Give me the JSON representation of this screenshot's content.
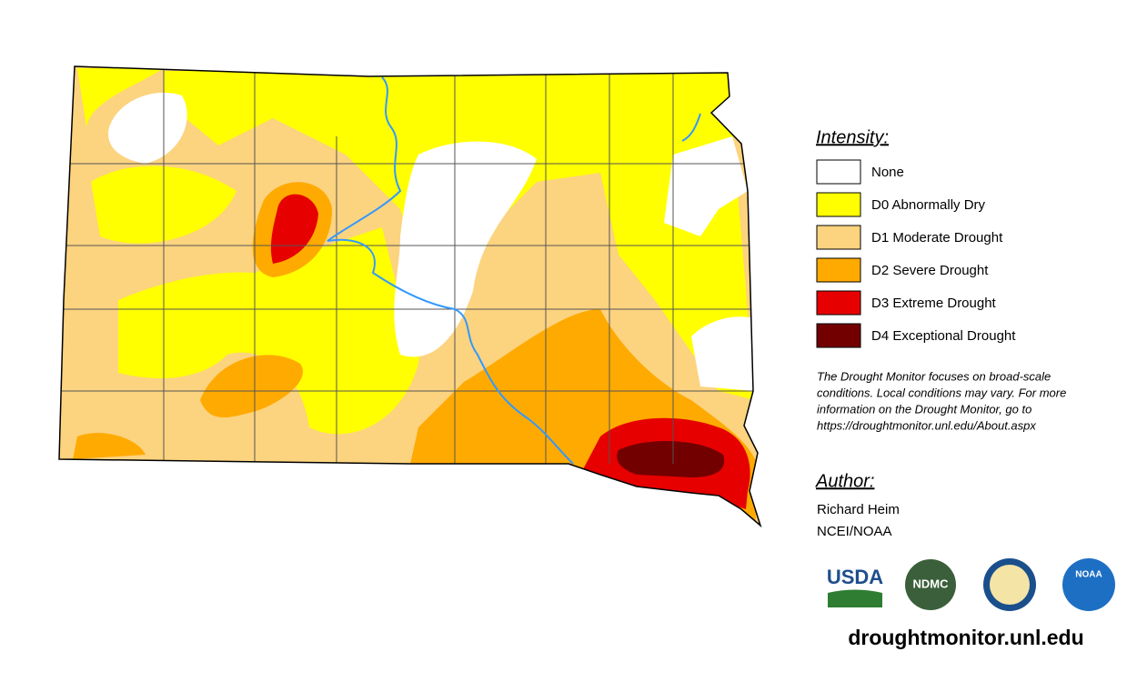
{
  "legend": {
    "title": "Intensity:",
    "items": [
      {
        "label": "None",
        "color": "#ffffff"
      },
      {
        "label": "D0 Abnormally Dry",
        "color": "#ffff00"
      },
      {
        "label": "D1 Moderate Drought",
        "color": "#fcd37f"
      },
      {
        "label": "D2 Severe Drought",
        "color": "#ffaa00"
      },
      {
        "label": "D3 Extreme Drought",
        "color": "#e60000"
      },
      {
        "label": "D4 Exceptional Drought",
        "color": "#730000"
      }
    ]
  },
  "note": [
    "The Drought Monitor focuses on broad-scale",
    "conditions. Local conditions may vary. For more",
    "information on the Drought Monitor, go to",
    "https://droughtmonitor.unl.edu/About.aspx"
  ],
  "author": {
    "title": "Author:",
    "lines": [
      "Richard Heim",
      "NCEI/NOAA"
    ]
  },
  "logos": [
    "USDA",
    "NDMC",
    "NOAA"
  ],
  "url": "droughtmonitor.unl.edu"
}
